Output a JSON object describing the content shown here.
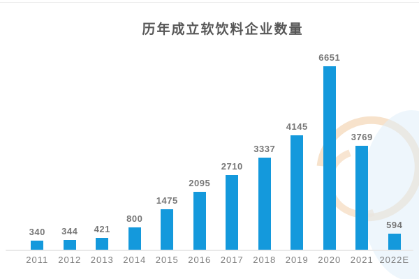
{
  "chart_data": {
    "type": "bar",
    "title": "历年成立软饮料企业数量",
    "categories": [
      "2011",
      "2012",
      "2013",
      "2014",
      "2015",
      "2016",
      "2017",
      "2018",
      "2019",
      "2020",
      "2021",
      "2022E"
    ],
    "values": [
      340,
      344,
      421,
      800,
      1475,
      2095,
      2710,
      3337,
      4145,
      6651,
      3769,
      594
    ],
    "xlabel": "",
    "ylabel": "",
    "ylim": [
      0,
      7000
    ],
    "grid": false,
    "legend": "none",
    "value_labels_shown": true,
    "colors": {
      "bar": "#1499dc",
      "title_text": "#575757",
      "value_label_text": "#777777",
      "axis_tick_text": "#7d7d7d",
      "axis_line": "#e9e9e9",
      "watermark_peach": "#f6dbbe",
      "watermark_blue": "#e0effa"
    }
  }
}
